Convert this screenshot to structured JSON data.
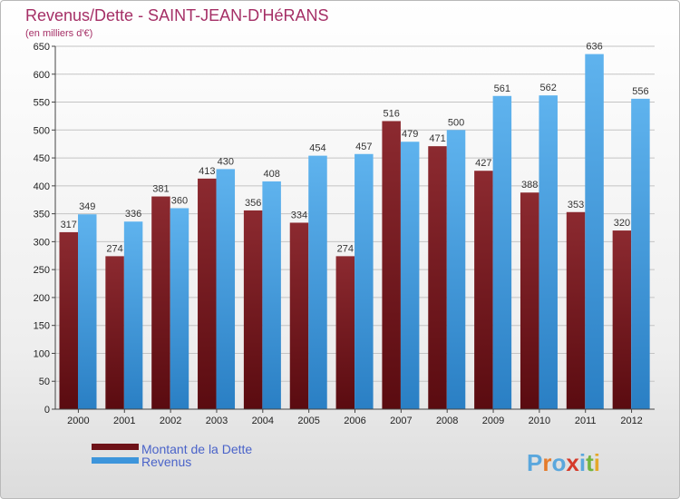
{
  "chart_data": {
    "type": "bar",
    "title": "Revenus/Dette - SAINT-JEAN-D'HéRANS",
    "subtitle": "(en milliers d'€)",
    "categories": [
      "2000",
      "2001",
      "2002",
      "2003",
      "2004",
      "2005",
      "2006",
      "2007",
      "2008",
      "2009",
      "2010",
      "2011",
      "2012"
    ],
    "series": [
      {
        "name": "Montant de la Dette",
        "color": "#7a1a1f",
        "values": [
          317,
          274,
          381,
          413,
          356,
          334,
          274,
          516,
          471,
          427,
          388,
          353,
          320
        ]
      },
      {
        "name": "Revenus",
        "color": "#3d95db",
        "values": [
          349,
          336,
          360,
          430,
          408,
          454,
          457,
          479,
          500,
          561,
          562,
          636,
          556
        ]
      }
    ],
    "ylim": [
      0,
      650
    ],
    "yticks": [
      0,
      50,
      100,
      150,
      200,
      250,
      300,
      350,
      400,
      450,
      500,
      550,
      600,
      650
    ],
    "grid": true,
    "legend_position": "bottom-left"
  },
  "logo_text": "Proxiti"
}
